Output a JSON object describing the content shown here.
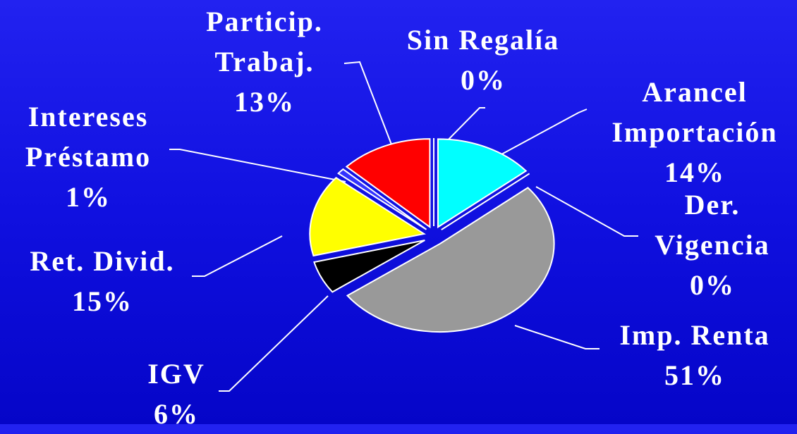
{
  "chart_data": {
    "type": "pie",
    "categories": [
      "Arancel Importación",
      "Der. Vigencia",
      "Imp. Renta",
      "IGV",
      "Ret. Divid.",
      "Intereses Préstamo",
      "Particip. Trabaj.",
      "Sin Regalía"
    ],
    "values": [
      14,
      0,
      51,
      6,
      15,
      1,
      13,
      0
    ],
    "value_labels": [
      "14%",
      "0%",
      "51%",
      "6%",
      "15%",
      "1%",
      "13%",
      "0%"
    ],
    "colors": [
      "#00ffff",
      "#9999ff",
      "#999999",
      "#000000",
      "#ffff00",
      "#3333ff",
      "#ff0000",
      "#ff00ff"
    ]
  }
}
